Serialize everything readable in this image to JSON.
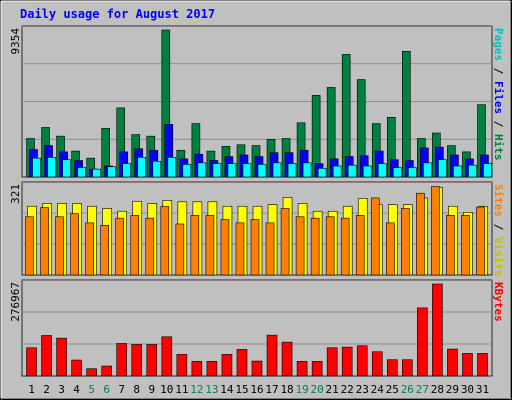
{
  "chart_data": [
    {
      "type": "bar",
      "title": "Daily usage for August 2017",
      "panel": "hits-files-pages",
      "ymax_label": "9354",
      "ylim": [
        0,
        9354
      ],
      "right_label": [
        "Pages",
        "Files",
        "Hits"
      ],
      "categories": [
        "1",
        "2",
        "3",
        "4",
        "5",
        "6",
        "7",
        "8",
        "9",
        "10",
        "11",
        "12",
        "13",
        "14",
        "15",
        "16",
        "17",
        "18",
        "19",
        "20",
        "21",
        "22",
        "23",
        "24",
        "25",
        "26",
        "27",
        "28",
        "29",
        "30",
        "31"
      ],
      "weekend_days": [
        "5",
        "6",
        "12",
        "13",
        "19",
        "20",
        "26",
        "27"
      ],
      "series": [
        {
          "name": "Hits",
          "color": "#008040",
          "values": [
            2450,
            3150,
            2600,
            1650,
            1200,
            3100,
            4400,
            2700,
            2600,
            9354,
            1700,
            3400,
            1650,
            1950,
            2050,
            2000,
            2400,
            2450,
            3450,
            5200,
            5700,
            7800,
            6200,
            3400,
            3800,
            8000,
            2450,
            2800,
            2000,
            1600,
            4600
          ]
        },
        {
          "name": "Files",
          "color": "#0000ff",
          "values": [
            1750,
            2000,
            1600,
            1050,
            500,
            700,
            1600,
            1800,
            1700,
            3350,
            1150,
            1450,
            1050,
            1300,
            1400,
            1300,
            1550,
            1550,
            1700,
            850,
            1150,
            1300,
            1350,
            1650,
            1100,
            1050,
            1850,
            1900,
            1400,
            1150,
            1400
          ]
        },
        {
          "name": "Pages",
          "color": "#00ffff",
          "values": [
            1200,
            1250,
            1100,
            600,
            500,
            650,
            850,
            1250,
            1000,
            1250,
            800,
            900,
            850,
            850,
            850,
            800,
            900,
            850,
            900,
            550,
            700,
            750,
            700,
            850,
            600,
            600,
            900,
            1100,
            700,
            750,
            850
          ]
        }
      ]
    },
    {
      "type": "bar",
      "panel": "visits-sites",
      "ymax_label": "321",
      "ylim": [
        0,
        321
      ],
      "right_label": [
        "Sites",
        "Visits"
      ],
      "categories": [
        "1",
        "2",
        "3",
        "4",
        "5",
        "6",
        "7",
        "8",
        "9",
        "10",
        "11",
        "12",
        "13",
        "14",
        "15",
        "16",
        "17",
        "18",
        "19",
        "20",
        "21",
        "22",
        "23",
        "24",
        "25",
        "26",
        "27",
        "28",
        "29",
        "30",
        "31"
      ],
      "series": [
        {
          "name": "Visits",
          "color": "#ffff00",
          "values": [
            248,
            258,
            258,
            258,
            248,
            240,
            230,
            266,
            258,
            269,
            264,
            264,
            264,
            248,
            248,
            248,
            254,
            280,
            258,
            230,
            230,
            248,
            276,
            254,
            254,
            254,
            278,
            316,
            248,
            226,
            248
          ]
        },
        {
          "name": "Sites",
          "color": "#ff8000",
          "values": [
            210,
            243,
            210,
            221,
            188,
            179,
            205,
            215,
            205,
            247,
            184,
            215,
            215,
            200,
            188,
            200,
            188,
            240,
            210,
            205,
            210,
            205,
            215,
            278,
            188,
            240,
            295,
            319,
            215,
            215,
            245
          ]
        }
      ]
    },
    {
      "type": "bar",
      "panel": "kbytes",
      "ymax_label": "276967",
      "ylim": [
        0,
        276967
      ],
      "right_label": [
        "KBytes"
      ],
      "categories": [
        "1",
        "2",
        "3",
        "4",
        "5",
        "6",
        "7",
        "8",
        "9",
        "10",
        "11",
        "12",
        "13",
        "14",
        "15",
        "16",
        "17",
        "18",
        "19",
        "20",
        "21",
        "22",
        "23",
        "24",
        "25",
        "26",
        "27",
        "28",
        "29",
        "30",
        "31"
      ],
      "series": [
        {
          "name": "KBytes",
          "color": "#ff0000",
          "values": [
            85000,
            122000,
            114000,
            48000,
            22000,
            30000,
            98000,
            95000,
            95000,
            118000,
            65000,
            44000,
            44000,
            65000,
            80000,
            45000,
            123000,
            102000,
            44000,
            44000,
            85000,
            87000,
            91000,
            73000,
            49000,
            49000,
            205000,
            276967,
            81000,
            68000,
            68000
          ]
        }
      ]
    }
  ]
}
